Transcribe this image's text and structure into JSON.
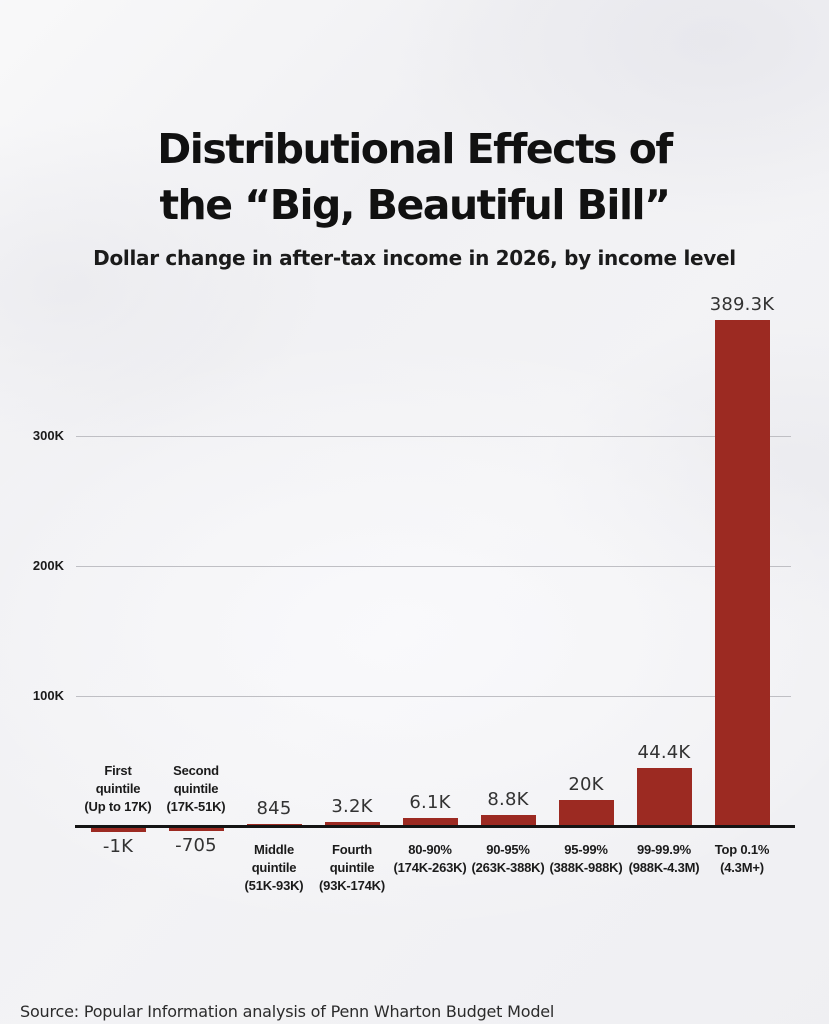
{
  "title": {
    "line1": "Distributional Effects of",
    "line2": "the “Big, Beautiful Bill”"
  },
  "subtitle": "Dollar change in after-tax income in 2026, by income level",
  "source": "Source: Popular Information analysis of Penn Wharton Budget Model",
  "colors": {
    "bar": "#9c2a22",
    "background": "#f2f2f4",
    "axis": "#141414",
    "gridline": "#bfbfc4",
    "title_text": "#111111",
    "label_text": "#1b1b1b",
    "value_text": "#333333"
  },
  "chart_data": {
    "type": "bar",
    "title": "Distributional Effects of the “Big, Beautiful Bill”",
    "subtitle": "Dollar change in after-tax income in 2026, by income level",
    "xlabel": "",
    "ylabel": "",
    "ylim": [
      -1000,
      400000
    ],
    "grid": true,
    "legend": false,
    "yticks": [
      {
        "label": "100K",
        "value": 100000
      },
      {
        "label": "200K",
        "value": 200000
      },
      {
        "label": "300K",
        "value": 300000
      }
    ],
    "categories": [
      "First quintile (Up to 17K)",
      "Second quintile (17K-51K)",
      "Middle quintile (51K-93K)",
      "Fourth quintile (93K-174K)",
      "80-90% (174K-263K)",
      "90-95% (263K-388K)",
      "95-99% (388K-988K)",
      "99-99.9% (988K-4.3M)",
      "Top 0.1% (4.3M+)"
    ],
    "category_lines": [
      [
        "First",
        "quintile",
        "(Up to 17K)"
      ],
      [
        "Second",
        "quintile",
        "(17K-51K)"
      ],
      [
        "Middle",
        "quintile",
        "(51K-93K)"
      ],
      [
        "Fourth",
        "quintile",
        "(93K-174K)"
      ],
      [
        "80-90%",
        "(174K-263K)"
      ],
      [
        "90-95%",
        "(263K-388K)"
      ],
      [
        "95-99%",
        "(388K-988K)"
      ],
      [
        "99-99.9%",
        "(988K-4.3M)"
      ],
      [
        "Top 0.1%",
        "(4.3M+)"
      ]
    ],
    "values": [
      -1000,
      -705,
      845,
      3200,
      6100,
      8800,
      20000,
      44400,
      389300
    ],
    "value_labels": [
      "-1K",
      "-705",
      "845",
      "3.2K",
      "6.1K",
      "8.8K",
      "20K",
      "44.4K",
      "389.3K"
    ]
  }
}
